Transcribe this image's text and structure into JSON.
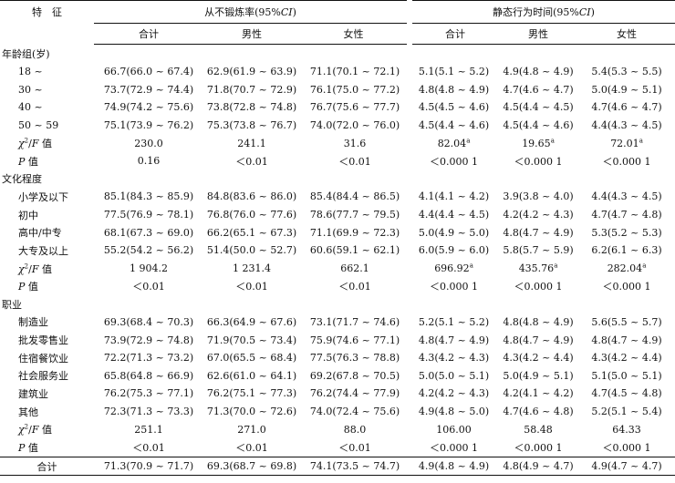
{
  "header": {
    "feature": "特　征",
    "group1": "从不锻炼率(95%CI)",
    "group2": "静态行为时间(95%CI)",
    "sub": [
      "合计",
      "男性",
      "女性",
      "合计",
      "男性",
      "女性"
    ]
  },
  "sections": [
    {
      "title": "年龄组(岁)",
      "rows": [
        {
          "label": "18 ~",
          "cells": [
            "66.7(66.0 ~ 67.4)",
            "62.9(61.9 ~ 63.9)",
            "71.1(70.1 ~ 72.1)",
            "5.1(5.1 ~ 5.2)",
            "4.9(4.8 ~ 4.9)",
            "5.4(5.3 ~ 5.5)"
          ]
        },
        {
          "label": "30 ~",
          "cells": [
            "73.7(72.9 ~ 74.4)",
            "71.8(70.7 ~ 72.9)",
            "76.1(75.0 ~ 77.2)",
            "4.8(4.8 ~ 4.9)",
            "4.7(4.6 ~ 4.7)",
            "5.0(4.9 ~ 5.1)"
          ]
        },
        {
          "label": "40 ~",
          "cells": [
            "74.9(74.2 ~ 75.6)",
            "73.8(72.8 ~ 74.8)",
            "76.7(75.6 ~ 77.7)",
            "4.5(4.5 ~ 4.6)",
            "4.5(4.4 ~ 4.5)",
            "4.7(4.6 ~ 4.7)"
          ]
        },
        {
          "label": "50 ~ 59",
          "cells": [
            "75.1(73.9 ~ 76.2)",
            "75.3(73.8 ~ 76.7)",
            "74.0(72.0 ~ 76.0)",
            "4.5(4.4 ~ 4.6)",
            "4.5(4.4 ~ 4.6)",
            "4.4(4.3 ~ 4.5)"
          ]
        }
      ],
      "stat": {
        "label_pre": "χ",
        "label_sup": "2",
        "label_post": "/F 值",
        "cells": [
          "230.0",
          "241.1",
          "31.6",
          "82.04",
          "19.65",
          "72.01"
        ],
        "sup": [
          "",
          "",
          "",
          "a",
          "a",
          "a"
        ]
      },
      "p": {
        "label": "P 值",
        "cells": [
          "0.16",
          "＜0.01",
          "＜0.01",
          "＜0.000 1",
          "＜0.000 1",
          "＜0.000 1"
        ]
      }
    },
    {
      "title": "文化程度",
      "rows": [
        {
          "label": "小学及以下",
          "cells": [
            "85.1(84.3 ~ 85.9)",
            "84.8(83.6 ~ 86.0)",
            "85.4(84.4 ~ 86.5)",
            "4.1(4.1 ~ 4.2)",
            "3.9(3.8 ~ 4.0)",
            "4.4(4.3 ~ 4.5)"
          ]
        },
        {
          "label": "初中",
          "cells": [
            "77.5(76.9 ~ 78.1)",
            "76.8(76.0 ~ 77.6)",
            "78.6(77.7 ~ 79.5)",
            "4.4(4.4 ~ 4.5)",
            "4.2(4.2 ~ 4.3)",
            "4.7(4.7 ~ 4.8)"
          ]
        },
        {
          "label": "高中/中专",
          "cells": [
            "68.1(67.3 ~ 69.0)",
            "66.2(65.1 ~ 67.3)",
            "71.1(69.9 ~ 72.3)",
            "5.0(4.9 ~ 5.0)",
            "4.8(4.7 ~ 4.9)",
            "5.3(5.2 ~ 5.3)"
          ]
        },
        {
          "label": "大专及以上",
          "cells": [
            "55.2(54.2 ~ 56.2)",
            "51.4(50.0 ~ 52.7)",
            "60.6(59.1 ~ 62.1)",
            "6.0(5.9 ~ 6.0)",
            "5.8(5.7 ~ 5.9)",
            "6.2(6.1 ~ 6.3)"
          ]
        }
      ],
      "stat": {
        "label_pre": "χ",
        "label_sup": "2",
        "label_post": "/F 值",
        "cells": [
          "1 904.2",
          "1 231.4",
          "662.1",
          "696.92",
          "435.76",
          "282.04"
        ],
        "sup": [
          "",
          "",
          "",
          "a",
          "a",
          "a"
        ]
      },
      "p": {
        "label": "P 值",
        "cells": [
          "＜0.01",
          "＜0.01",
          "＜0.01",
          "＜0.000 1",
          "＜0.000 1",
          "＜0.000 1"
        ]
      }
    },
    {
      "title": "职业",
      "rows": [
        {
          "label": "制造业",
          "cells": [
            "69.3(68.4 ~ 70.3)",
            "66.3(64.9 ~ 67.6)",
            "73.1(71.7 ~ 74.6)",
            "5.2(5.1 ~ 5.2)",
            "4.8(4.8 ~ 4.9)",
            "5.6(5.5 ~ 5.7)"
          ]
        },
        {
          "label": "批发零售业",
          "cells": [
            "73.9(72.9 ~ 74.8)",
            "71.9(70.5 ~ 73.4)",
            "75.9(74.6 ~ 77.1)",
            "4.8(4.7 ~ 4.9)",
            "4.8(4.7 ~ 4.9)",
            "4.8(4.7 ~ 4.9)"
          ]
        },
        {
          "label": "住宿餐饮业",
          "cells": [
            "72.2(71.3 ~ 73.2)",
            "67.0(65.5 ~ 68.4)",
            "77.5(76.3 ~ 78.8)",
            "4.3(4.2 ~ 4.3)",
            "4.3(4.2 ~ 4.4)",
            "4.3(4.2 ~ 4.4)"
          ]
        },
        {
          "label": "社会服务业",
          "cells": [
            "65.8(64.8 ~ 66.9)",
            "62.6(61.0 ~ 64.1)",
            "69.2(67.8 ~ 70.5)",
            "5.0(5.0 ~ 5.1)",
            "5.0(4.9 ~ 5.1)",
            "5.1(5.0 ~ 5.1)"
          ]
        },
        {
          "label": "建筑业",
          "cells": [
            "76.2(75.3 ~ 77.1)",
            "76.2(75.1 ~ 77.3)",
            "76.2(74.4 ~ 77.9)",
            "4.2(4.2 ~ 4.3)",
            "4.2(4.1 ~ 4.2)",
            "4.7(4.5 ~ 4.8)"
          ]
        },
        {
          "label": "其他",
          "cells": [
            "72.3(71.3 ~ 73.3)",
            "71.3(70.0 ~ 72.6)",
            "74.0(72.4 ~ 75.6)",
            "4.9(4.8 ~ 5.0)",
            "4.7(4.6 ~ 4.8)",
            "5.2(5.1 ~ 5.4)"
          ]
        }
      ],
      "stat": {
        "label_pre": "χ",
        "label_sup": "2",
        "label_post": "/F 值",
        "cells": [
          "251.1",
          "271.0",
          "88.0",
          "106.00",
          "58.48",
          "64.33"
        ],
        "sup": [
          "",
          "",
          "",
          "",
          "",
          ""
        ]
      },
      "p": {
        "label": "P 值",
        "cells": [
          "＜0.01",
          "＜0.01",
          "＜0.01",
          "＜0.000 1",
          "＜0.000 1",
          "＜0.000 1"
        ]
      }
    }
  ],
  "total": {
    "label": "合计",
    "cells": [
      "71.3(70.9 ~ 71.7)",
      "69.3(68.7 ~ 69.8)",
      "74.1(73.5 ~ 74.7)",
      "4.9(4.8 ~ 4.9)",
      "4.8(4.9 ~ 4.7)",
      "4.9(4.7 ~ 4.7)"
    ]
  }
}
